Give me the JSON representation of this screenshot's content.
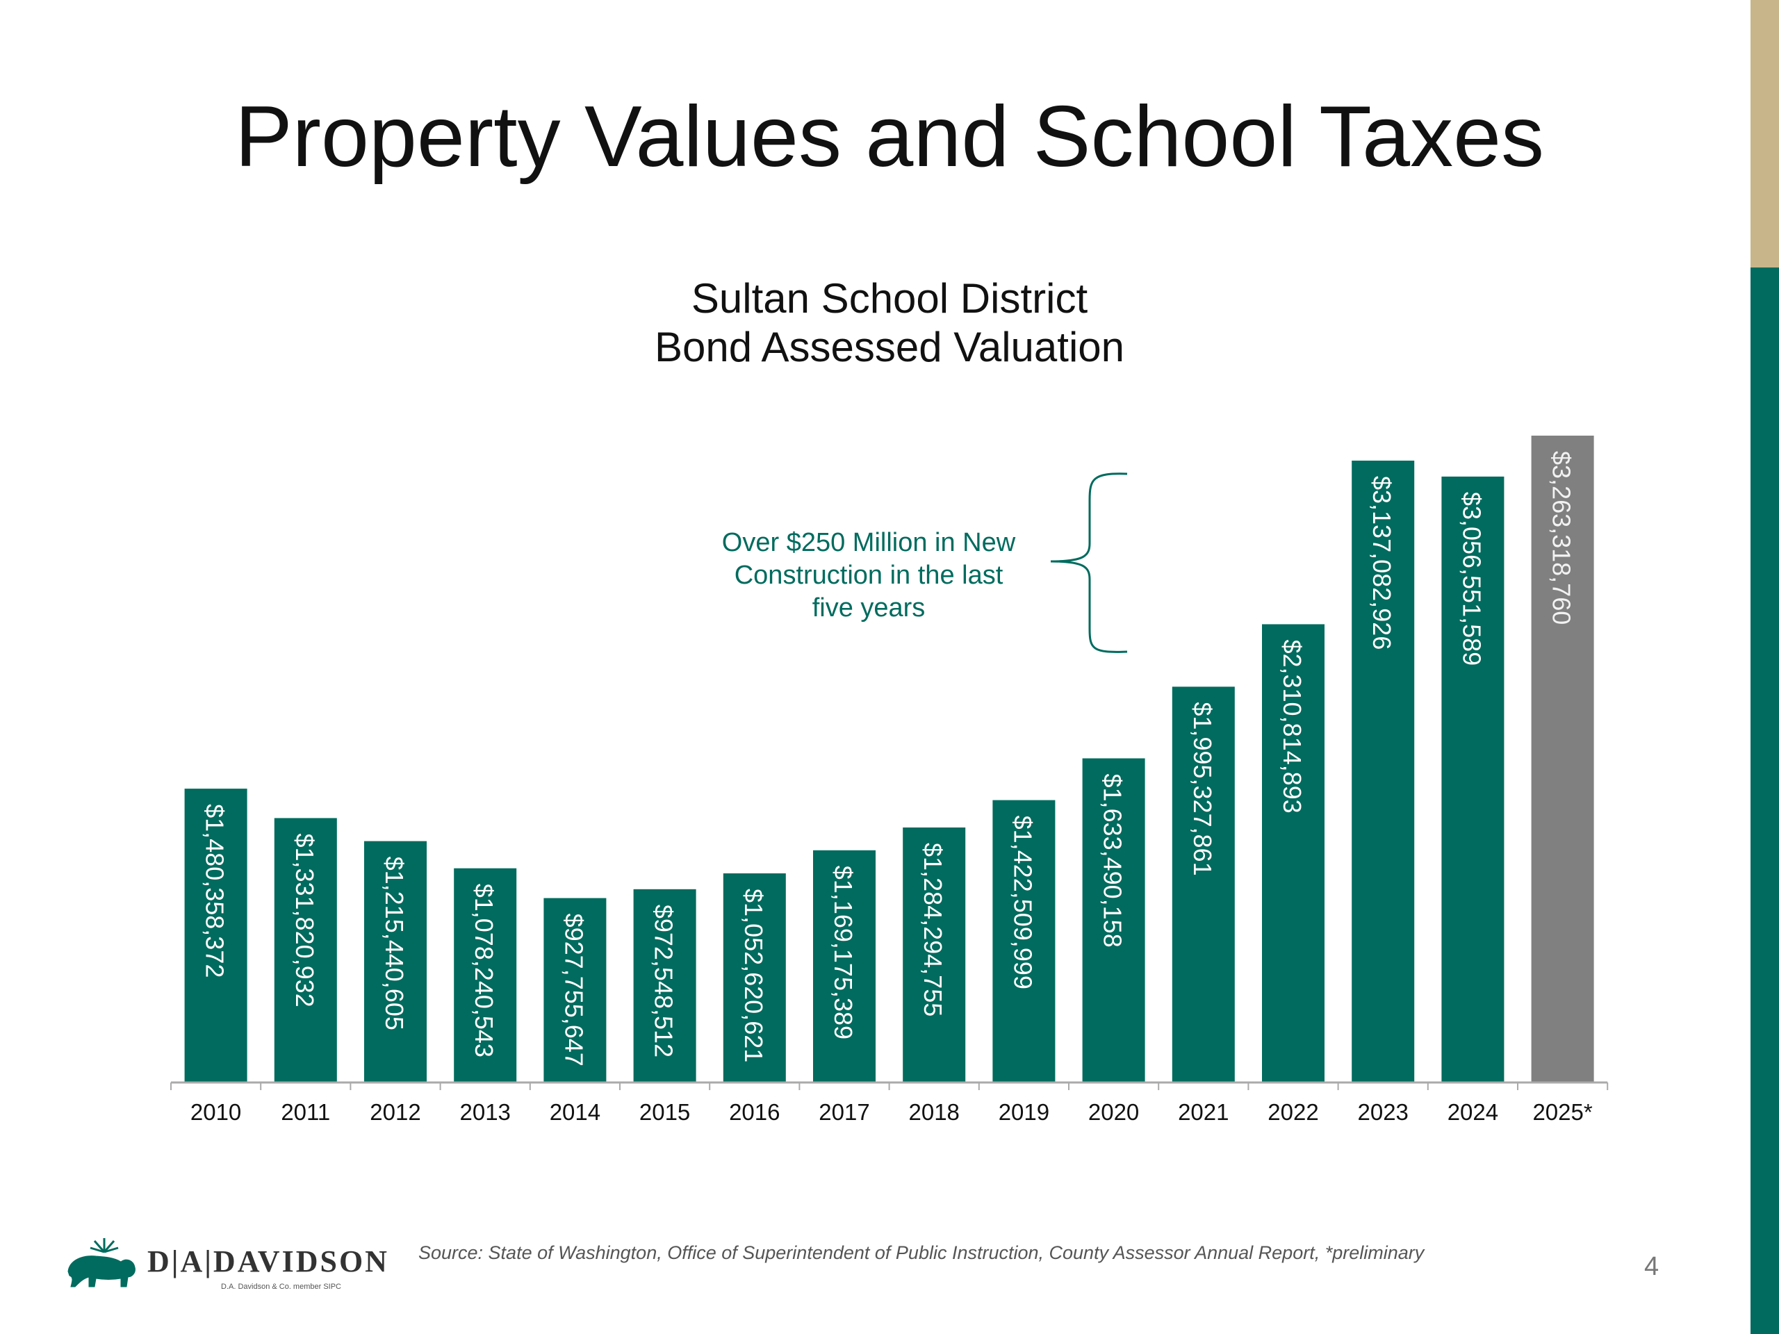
{
  "slide": {
    "title": "Property Values and School Taxes",
    "page_number": "4",
    "source": "Source: State of Washington, Office of Superintendent of Public Instruction, County Assessor Annual Report, *preliminary"
  },
  "logo": {
    "text": "D|A|DAVIDSON",
    "subtext": "D.A. Davidson & Co. member SIPC",
    "icon": "bison-icon"
  },
  "colors": {
    "bar": "#006B5E",
    "bar_preliminary": "#808080",
    "side_gold": "#C8B68A",
    "side_teal": "#006B5E",
    "annotation": "#006B5E"
  },
  "annotation": {
    "lines": [
      "Over $250 Million in New",
      "Construction in the last",
      "five years"
    ]
  },
  "chart_data": {
    "type": "bar",
    "title": [
      "Sultan School District",
      "Bond Assessed Valuation"
    ],
    "xlabel": "",
    "ylabel": "",
    "categories": [
      "2010",
      "2011",
      "2012",
      "2013",
      "2014",
      "2015",
      "2016",
      "2017",
      "2018",
      "2019",
      "2020",
      "2021",
      "2022",
      "2023",
      "2024",
      "2025*"
    ],
    "values": [
      1480358372,
      1331820932,
      1215440605,
      1078240543,
      927755647,
      972548512,
      1052620621,
      1169175389,
      1284294755,
      1422509999,
      1633490158,
      1995327861,
      2310814893,
      3137082926,
      3056551589,
      3263318760
    ],
    "labels": [
      "$1,480,358,372",
      "$1,331,820,932",
      "$1,215,440,605",
      "$1,078,240,543",
      "$927,755,647",
      "$972,548,512",
      "$1,052,620,621",
      "$1,169,175,389",
      "$1,284,294,755",
      "$1,422,509,999",
      "$1,633,490,158",
      "$1,995,327,861",
      "$2,310,814,893",
      "$3,137,082,926",
      "$3,056,551,589",
      "$3,263,318,760"
    ],
    "preliminary": [
      false,
      false,
      false,
      false,
      false,
      false,
      false,
      false,
      false,
      false,
      false,
      false,
      false,
      false,
      false,
      true
    ],
    "ylim": [
      0,
      3263318760
    ],
    "grid": false,
    "legend": "none"
  }
}
